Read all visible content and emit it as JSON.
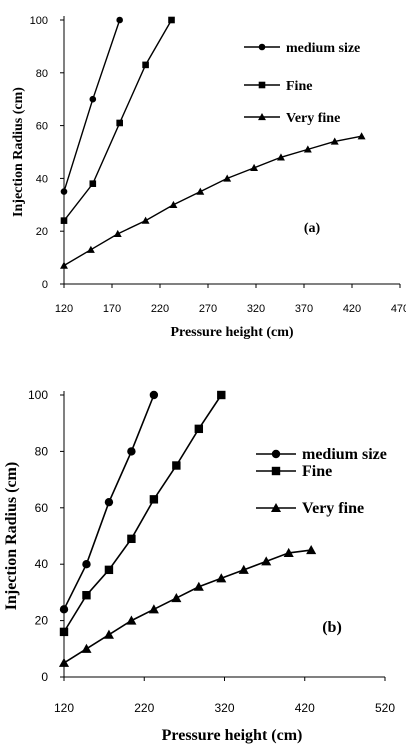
{
  "chart_data": [
    {
      "type": "line",
      "panel_label": "(a)",
      "xlabel": "Pressure height (cm)",
      "ylabel": "Injection Radius (cm)",
      "xlim": [
        120,
        470
      ],
      "ylim": [
        0,
        100
      ],
      "xticks": [
        120,
        170,
        220,
        270,
        320,
        370,
        420,
        470
      ],
      "yticks": [
        0,
        20,
        40,
        60,
        80,
        100
      ],
      "grid": false,
      "legend_position": "top-right",
      "series": [
        {
          "name": "medium size",
          "marker": "circle",
          "x": [
            120,
            150,
            178
          ],
          "y": [
            35,
            70,
            100
          ]
        },
        {
          "name": "Fine",
          "marker": "square",
          "x": [
            120,
            150,
            178,
            205,
            232
          ],
          "y": [
            24,
            38,
            61,
            83,
            100
          ]
        },
        {
          "name": "Very fine",
          "marker": "triangle",
          "x": [
            120,
            148,
            176,
            205,
            234,
            262,
            290,
            318,
            346,
            374,
            402,
            430
          ],
          "y": [
            7,
            13,
            19,
            24,
            30,
            35,
            40,
            44,
            48,
            51,
            54,
            56
          ]
        }
      ]
    },
    {
      "type": "line",
      "panel_label": "(b)",
      "xlabel": "Pressure height (cm)",
      "ylabel": "Injection Radius (cm)",
      "xlim": [
        120,
        520
      ],
      "ylim": [
        0,
        100
      ],
      "xticks": [
        120,
        220,
        320,
        420,
        520
      ],
      "yticks": [
        0,
        20,
        40,
        60,
        80,
        100
      ],
      "grid": false,
      "legend_position": "top-right",
      "series": [
        {
          "name": "medium size",
          "marker": "circle",
          "x": [
            120,
            148,
            176,
            204,
            232
          ],
          "y": [
            24,
            40,
            62,
            80,
            100
          ]
        },
        {
          "name": "Fine",
          "marker": "square",
          "x": [
            120,
            148,
            176,
            204,
            232,
            260,
            288,
            316
          ],
          "y": [
            16,
            29,
            38,
            49,
            63,
            75,
            88,
            100
          ]
        },
        {
          "name": "Very fine",
          "marker": "triangle",
          "x": [
            120,
            148,
            176,
            204,
            232,
            260,
            288,
            316,
            344,
            372,
            400,
            428
          ],
          "y": [
            5,
            10,
            15,
            20,
            24,
            28,
            32,
            35,
            38,
            41,
            44,
            45
          ]
        }
      ]
    }
  ]
}
